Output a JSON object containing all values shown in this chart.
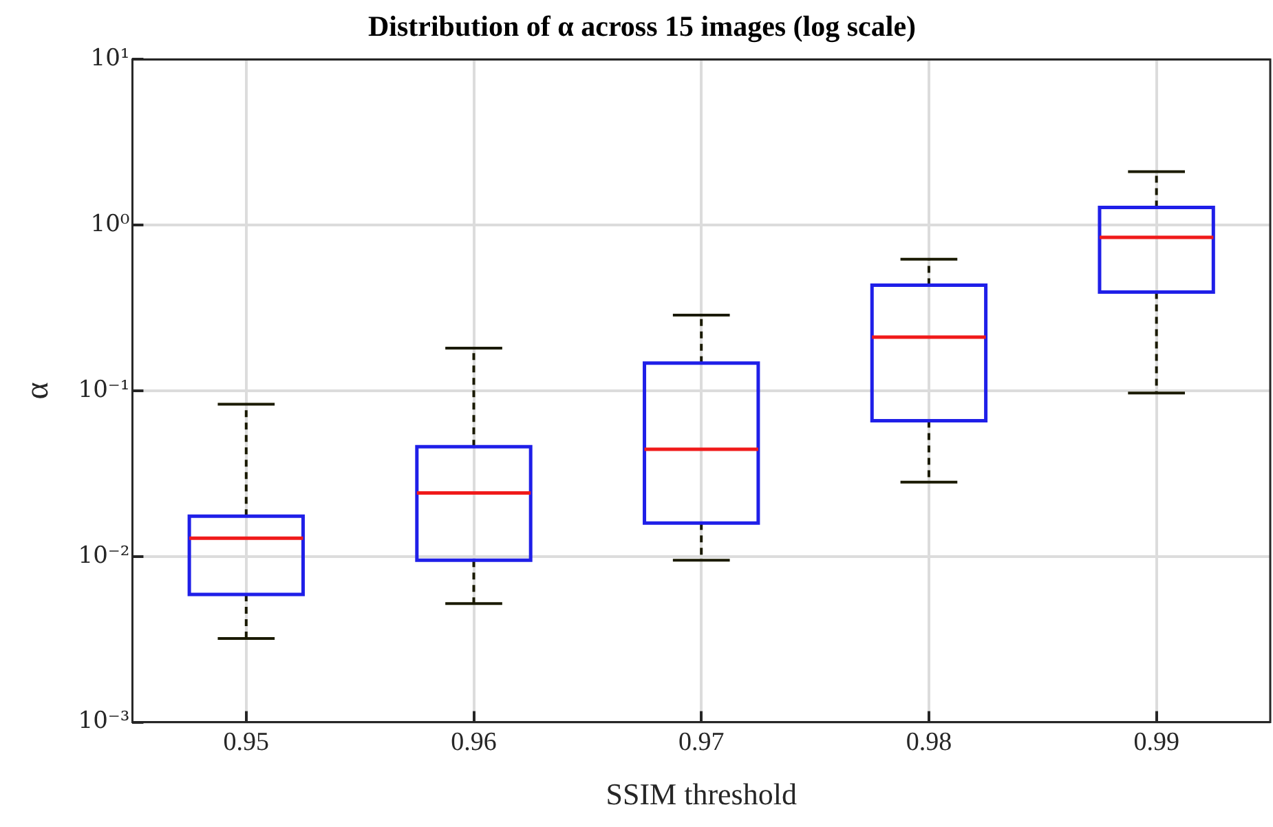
{
  "chart_data": {
    "type": "box",
    "title": "Distribution of α across 15 images (log scale)",
    "xlabel": "SSIM threshold",
    "ylabel": "α",
    "categories": [
      "0.95",
      "0.96",
      "0.97",
      "0.98",
      "0.99"
    ],
    "series": [
      {
        "color": "#1f1fe8",
        "boxes": [
          {
            "low": 0.0032,
            "q1": 0.0059,
            "median": 0.0129,
            "q3": 0.0175,
            "high": 0.083
          },
          {
            "low": 0.0052,
            "q1": 0.0095,
            "median": 0.0242,
            "q3": 0.046,
            "high": 0.181
          },
          {
            "low": 0.0095,
            "q1": 0.0159,
            "median": 0.0444,
            "q3": 0.147,
            "high": 0.286
          },
          {
            "low": 0.0281,
            "q1": 0.066,
            "median": 0.211,
            "q3": 0.434,
            "high": 0.622
          },
          {
            "low": 0.097,
            "q1": 0.394,
            "median": 0.843,
            "q3": 1.28,
            "high": 2.1
          }
        ]
      }
    ],
    "log": "y",
    "ylim": [
      0.001,
      10
    ],
    "yticks": [
      {
        "value": 0.001,
        "label": "10⁻³"
      },
      {
        "value": 0.01,
        "label": "10⁻²"
      },
      {
        "value": 0.1,
        "label": "10⁻¹"
      },
      {
        "value": 1,
        "label": "10⁰"
      },
      {
        "value": 10,
        "label": "10¹"
      }
    ],
    "grid": true
  }
}
